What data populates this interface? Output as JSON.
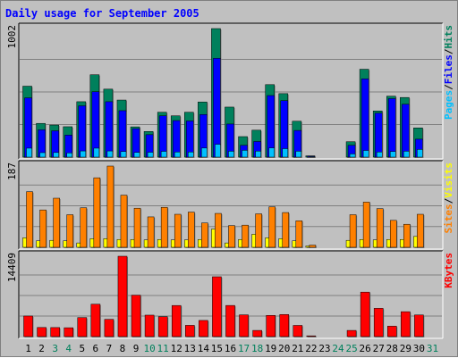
{
  "colors": {
    "background": "#c0c0c0",
    "panel": "#c0c0c0",
    "title": "#0000ff",
    "hits": "#00805c",
    "files": "#0000ff",
    "pages": "#00c0ff",
    "visits": "#ffff00",
    "sites": "#ff8000",
    "kbytes": "#ff0000",
    "weekend_label": "#00805c",
    "weekday_label": "#000000"
  },
  "chart_data": {
    "type": "bar",
    "title": "Daily usage for September 2005",
    "categories": [
      "1",
      "2",
      "3",
      "4",
      "5",
      "6",
      "7",
      "8",
      "9",
      "10",
      "11",
      "12",
      "13",
      "14",
      "15",
      "16",
      "17",
      "18",
      "19",
      "20",
      "21",
      "22",
      "23",
      "24",
      "25",
      "26",
      "27",
      "28",
      "29",
      "30",
      "31"
    ],
    "weekend_days": [
      "3",
      "4",
      "10",
      "11",
      "17",
      "18",
      "24",
      "25",
      "31"
    ],
    "panels": [
      {
        "name": "hits-files-pages",
        "ymax": 1002,
        "ymax_label": "1002",
        "legend": [
          {
            "label": "Pages",
            "color": "#00c0ff"
          },
          {
            "label": "/",
            "color": "#000000"
          },
          {
            "label": "Files",
            "color": "#0000ff"
          },
          {
            "label": "/",
            "color": "#000000"
          },
          {
            "label": "Hits",
            "color": "#00805c"
          }
        ],
        "series": [
          {
            "name": "Hits",
            "color": "#00805c",
            "values": [
              553,
              263,
              250,
              237,
              432,
              642,
              530,
              445,
              236,
              200,
              350,
              322,
              350,
              430,
              1002,
              390,
              160,
              210,
              565,
              495,
              280,
              10,
              0,
              0,
              120,
              685,
              360,
              475,
              465,
              228,
              0
            ]
          },
          {
            "name": "Files",
            "color": "#0000ff",
            "values": [
              462,
              213,
              205,
              172,
              400,
              510,
              432,
              362,
              222,
              175,
              322,
              285,
              282,
              332,
              770,
              258,
              92,
              122,
              480,
              440,
              208,
              8,
              0,
              0,
              92,
              610,
              343,
              456,
              412,
              140,
              0
            ]
          },
          {
            "name": "Pages",
            "color": "#00c0ff",
            "values": [
              70,
              35,
              36,
              33,
              48,
              70,
              48,
              44,
              37,
              38,
              45,
              40,
              40,
              71,
              100,
              46,
              53,
              47,
              72,
              66,
              46,
              4,
              0,
              0,
              25,
              52,
              40,
              44,
              46,
              60,
              0
            ]
          }
        ]
      },
      {
        "name": "visits-sites",
        "ymax": 187,
        "ymax_label": "187",
        "legend": [
          {
            "label": "Sites",
            "color": "#ff8000"
          },
          {
            "label": "/",
            "color": "#000000"
          },
          {
            "label": "Visits",
            "color": "#ffff00"
          }
        ],
        "series": [
          {
            "name": "Sites",
            "color": "#ff8000",
            "values": [
              128,
              86,
              113,
              75,
              91,
              160,
              187,
              120,
              90,
              70,
              92,
              76,
              81,
              56,
              78,
              50,
              51,
              77,
              93,
              80,
              61,
              5,
              0,
              0,
              75,
              104,
              89,
              62,
              53,
              76,
              0
            ]
          },
          {
            "name": "Visits",
            "color": "#ffff00",
            "values": [
              22,
              15,
              16,
              15,
              10,
              20,
              20,
              18,
              18,
              17,
              18,
              17,
              17,
              18,
              42,
              10,
              18,
              30,
              22,
              20,
              15,
              3,
              0,
              0,
              16,
              18,
              17,
              18,
              18,
              25,
              0
            ]
          }
        ]
      },
      {
        "name": "kbytes",
        "ymax": 14409,
        "ymax_label": "14409",
        "legend": [
          {
            "label": "KBytes",
            "color": "#ff0000"
          }
        ],
        "series": [
          {
            "name": "KBytes",
            "color": "#ff0000",
            "values": [
              3690,
              1630,
              1620,
              1585,
              3410,
              5810,
              3094,
              14409,
              7430,
              3847,
              3566,
              5575,
              2014,
              2896,
              10727,
              5581,
              3898,
              1107,
              3796,
              3955,
              2003,
              132,
              0,
              0,
              1107,
              7976,
              5066,
              1866,
              4465,
              3876,
              0
            ]
          }
        ]
      }
    ]
  }
}
